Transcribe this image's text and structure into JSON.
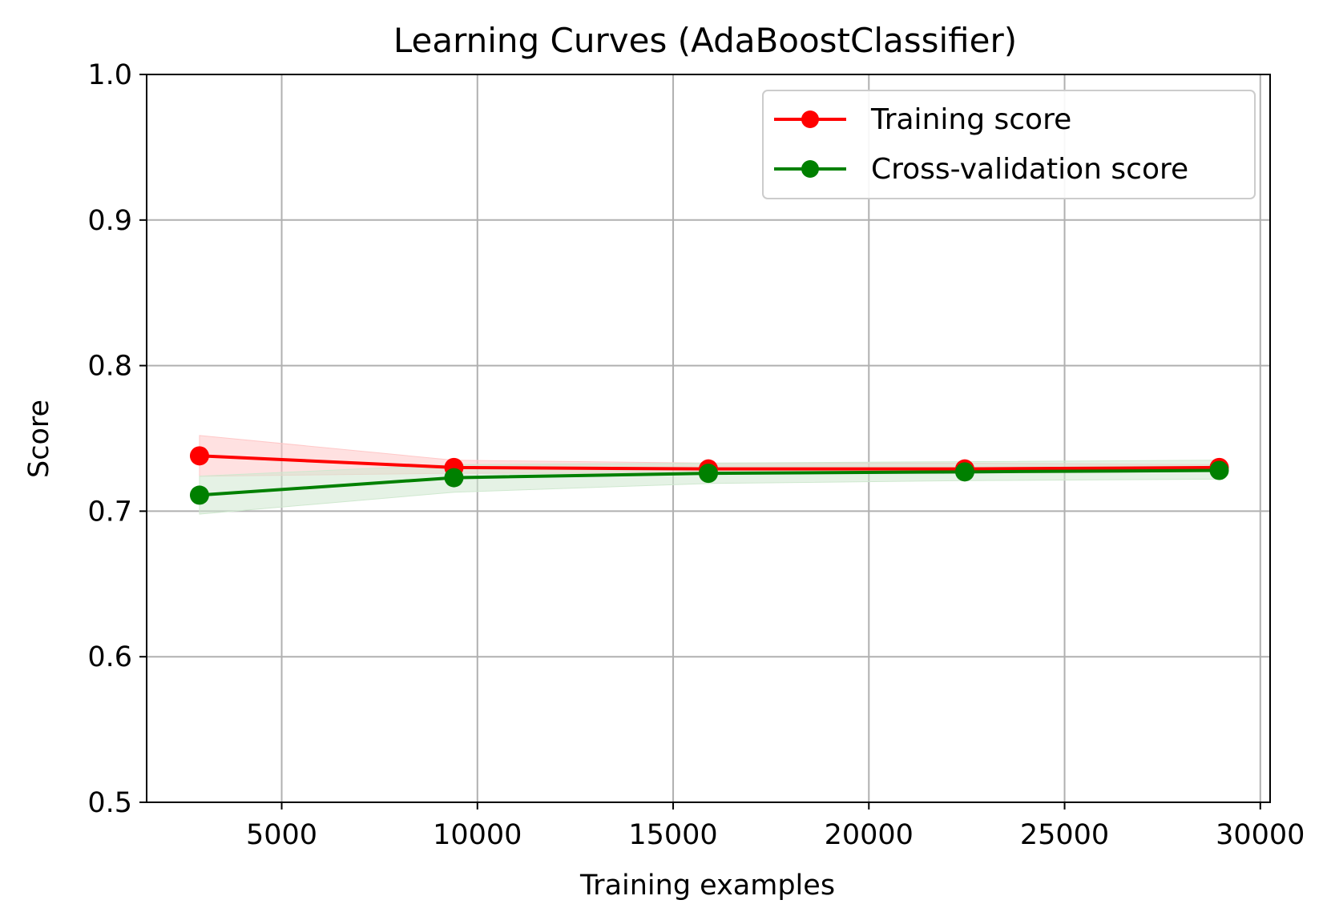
{
  "chart_data": {
    "type": "line",
    "title": "Learning Curves (AdaBoostClassifier)",
    "xlabel": "Training examples",
    "ylabel": "Score",
    "xlim": [
      1550,
      30250
    ],
    "ylim": [
      0.5,
      1.0
    ],
    "xticks": [
      5000,
      10000,
      15000,
      20000,
      25000,
      30000
    ],
    "xtick_labels": [
      "5000",
      "10000",
      "15000",
      "20000",
      "25000",
      "30000"
    ],
    "yticks": [
      0.5,
      0.6,
      0.7,
      0.8,
      0.9,
      1.0
    ],
    "ytick_labels": [
      "0.5",
      "0.6",
      "0.7",
      "0.8",
      "0.9",
      "1.0"
    ],
    "grid": true,
    "legend_position": "top-right",
    "x": [
      2900,
      9400,
      15900,
      22450,
      28950
    ],
    "series": [
      {
        "name": "Training score",
        "color": "#ff0000",
        "band_color": "#ffc8c8",
        "values": [
          0.738,
          0.73,
          0.729,
          0.729,
          0.73
        ],
        "band_lower": [
          0.724,
          0.726,
          0.726,
          0.727,
          0.728
        ],
        "band_upper": [
          0.752,
          0.735,
          0.733,
          0.733,
          0.732
        ]
      },
      {
        "name": "Cross-validation score",
        "color": "#008000",
        "band_color": "#cfe8cf",
        "values": [
          0.711,
          0.723,
          0.726,
          0.727,
          0.728
        ],
        "band_lower": [
          0.698,
          0.713,
          0.719,
          0.721,
          0.722
        ],
        "band_upper": [
          0.724,
          0.732,
          0.733,
          0.734,
          0.735
        ]
      }
    ]
  }
}
